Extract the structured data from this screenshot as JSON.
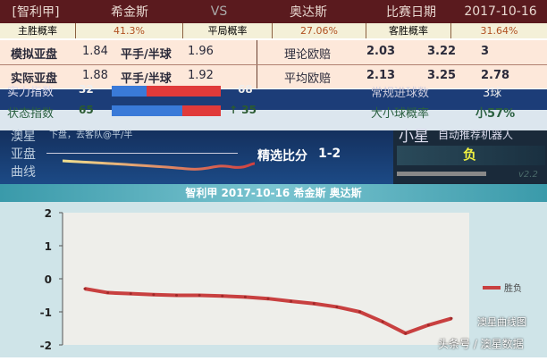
{
  "header": {
    "league": "[智利甲]",
    "home": "希金斯",
    "vs": "VS",
    "away": "奥达斯",
    "date_label": "比赛日期",
    "date": "2017-10-16"
  },
  "prob": {
    "home_label": "主胜概率",
    "home": "41.3%",
    "draw_label": "平局概率",
    "draw": "27.06%",
    "away_label": "客胜概率",
    "away": "31.64%"
  },
  "asian": [
    {
      "label": "模拟亚盘",
      "h": "1.84",
      "line": "平手/半球",
      "a": "1.96",
      "eu_label": "理论欧赔",
      "e1": "2.03",
      "e2": "3.22",
      "e3": "3"
    },
    {
      "label": "实际亚盘",
      "h": "1.88",
      "line": "平手/半球",
      "a": "1.92",
      "eu_label": "平均欧赔",
      "e1": "2.13",
      "e2": "3.25",
      "e3": "2.78"
    }
  ],
  "index": {
    "strength_label": "实力指数",
    "s_home": "32",
    "s_away": "68",
    "s_frac": 0.32,
    "form_label": "状态指数",
    "f_home": "65",
    "f_away": "↑ 35",
    "f_frac": 0.65,
    "goals_label": "常规进球数",
    "goals": "3球",
    "ou_label": "大小球概率",
    "ou": "小57%"
  },
  "curve": {
    "l1": "澳星",
    "l2": "亚盘",
    "l3": "曲线",
    "tip": "下盘，去客队@平/半",
    "score_label": "精选比分",
    "score": "1-2",
    "robot_name": "小星",
    "robot_title": "自动推荐机器人",
    "pick": "负",
    "version": "v2.2"
  },
  "chart_data": {
    "type": "line",
    "title": "智利甲 2017-10-16 希金斯 奥达斯",
    "ylim": [
      -2,
      2
    ],
    "yticks": [
      "2",
      "1",
      "0",
      "-1",
      "-2"
    ],
    "series": [
      {
        "name": "胜负",
        "values": [
          -0.3,
          -0.42,
          -0.45,
          -0.48,
          -0.5,
          -0.5,
          -0.52,
          -0.55,
          -0.6,
          -0.68,
          -0.75,
          -0.85,
          -1.0,
          -1.3,
          -1.65,
          -1.4,
          -1.2
        ]
      }
    ],
    "legend": "right",
    "color": "#c84040"
  },
  "watermark": {
    "a": "澳星曲线图",
    "b": "头条号 / 澳星数据"
  }
}
